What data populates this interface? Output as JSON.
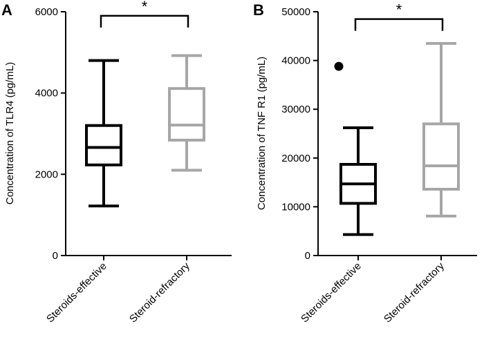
{
  "chart_data": [
    {
      "type": "box",
      "panel": "A",
      "ylabel": "Concentration of TLR4 (pg/mL)",
      "ylim": [
        0,
        6000
      ],
      "yticks": [
        "0",
        "2000",
        "4000",
        "6000"
      ],
      "categories": [
        "Steroids-effective",
        "Steroid-refractory"
      ],
      "colors": [
        "#000000",
        "#a6a6a6"
      ],
      "boxes": [
        {
          "min": 1220,
          "q1": 2230,
          "median": 2660,
          "q3": 3200,
          "max": 4800,
          "outliers": []
        },
        {
          "min": 2100,
          "q1": 2840,
          "median": 3210,
          "q3": 4110,
          "max": 4920,
          "outliers": []
        }
      ],
      "significance": {
        "label": "*",
        "bracket_y": 5900
      }
    },
    {
      "type": "box",
      "panel": "B",
      "ylabel": "Concentration of TNF R1 (pg/mL)",
      "ylim": [
        0,
        50000
      ],
      "yticks": [
        "0",
        "10000",
        "20000",
        "30000",
        "40000",
        "50000"
      ],
      "categories": [
        "Steroids-effective",
        "Steroid-refractory"
      ],
      "colors": [
        "#000000",
        "#a6a6a6"
      ],
      "boxes": [
        {
          "min": 4300,
          "q1": 10700,
          "median": 14700,
          "q3": 18700,
          "max": 26200,
          "outliers": [
            38800
          ]
        },
        {
          "min": 8100,
          "q1": 13600,
          "median": 18400,
          "q3": 27000,
          "max": 43500,
          "outliers": []
        }
      ],
      "significance": {
        "label": "*",
        "bracket_y": 48500
      }
    }
  ]
}
